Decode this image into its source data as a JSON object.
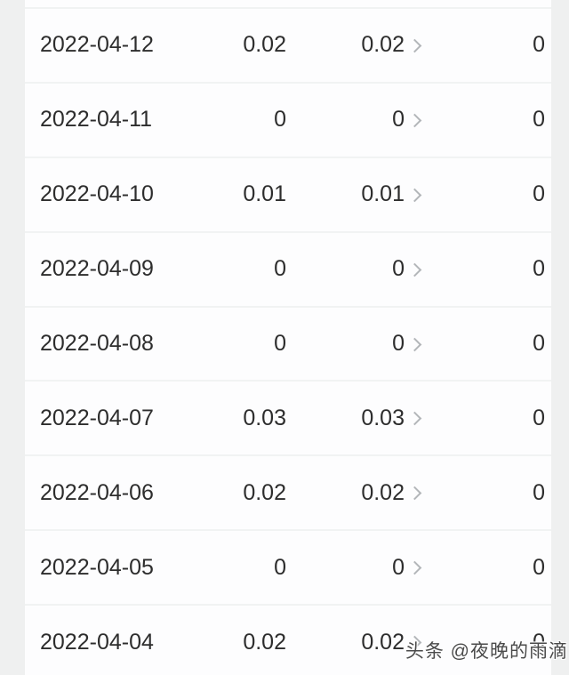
{
  "table": {
    "rows": [
      {
        "date": "2022-04-12",
        "value_a": "0.02",
        "value_b": "0.02",
        "value_c": "0"
      },
      {
        "date": "2022-04-11",
        "value_a": "0",
        "value_b": "0",
        "value_c": "0"
      },
      {
        "date": "2022-04-10",
        "value_a": "0.01",
        "value_b": "0.01",
        "value_c": "0"
      },
      {
        "date": "2022-04-09",
        "value_a": "0",
        "value_b": "0",
        "value_c": "0"
      },
      {
        "date": "2022-04-08",
        "value_a": "0",
        "value_b": "0",
        "value_c": "0"
      },
      {
        "date": "2022-04-07",
        "value_a": "0.03",
        "value_b": "0.03",
        "value_c": "0"
      },
      {
        "date": "2022-04-06",
        "value_a": "0.02",
        "value_b": "0.02",
        "value_c": "0"
      },
      {
        "date": "2022-04-05",
        "value_a": "0",
        "value_b": "0",
        "value_c": "0"
      },
      {
        "date": "2022-04-04",
        "value_a": "0.02",
        "value_b": "0.02",
        "value_c": "0"
      }
    ]
  },
  "icons": {
    "row_chevron": "chevron-right"
  },
  "watermark": {
    "text": "头条 @夜晚的雨滴"
  },
  "colors": {
    "page_margin": "#eff0f0",
    "row_background": "#fdfdfe",
    "separator": "#f1f3f3",
    "text": "#2d2d2d",
    "chevron": "#b3b6b9",
    "watermark_text": "#4a4a4a"
  }
}
